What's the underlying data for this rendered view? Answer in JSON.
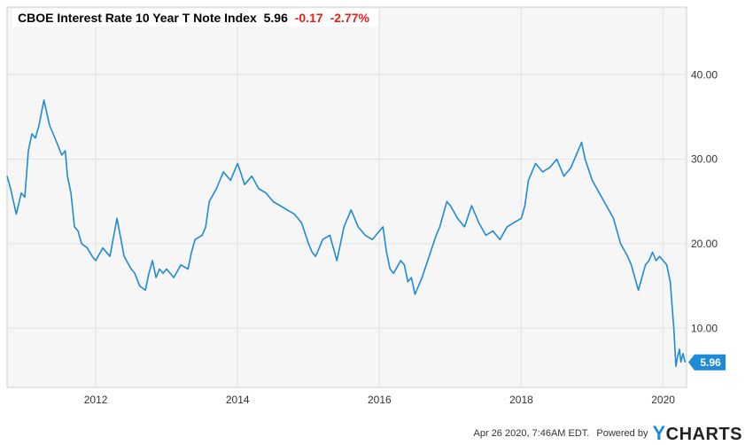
{
  "header": {
    "title": "CBOE Interest Rate 10 Year T Note Index",
    "value": "5.96",
    "change": "-0.17",
    "change_pct": "-2.77%"
  },
  "footer": {
    "timestamp": "Apr 26 2020, 7:46AM EDT.",
    "powered_by": "Powered by",
    "brand_first": "Y",
    "brand_rest": "CHARTS"
  },
  "colors": {
    "line": "#1f8ad6",
    "negative": "#e0201b",
    "plot_bg": "#f6f6f6",
    "grid": "#e2e2e2"
  },
  "chart_data": {
    "type": "line",
    "title": "CBOE Interest Rate 10 Year T Note Index",
    "xlim": [
      2010.75,
      2020.33
    ],
    "ylim": [
      3,
      48
    ],
    "x_ticks": [
      2012,
      2014,
      2016,
      2018,
      2020
    ],
    "x_tick_labels": [
      "2012",
      "2014",
      "2016",
      "2018",
      "2020"
    ],
    "y_ticks": [
      10,
      20,
      30,
      40
    ],
    "y_tick_labels": [
      "10.00",
      "20.00",
      "30.00",
      "40.00"
    ],
    "grid": true,
    "last_value_label": "5.96",
    "last_value": 5.96,
    "series": [
      {
        "x": [
          2010.75,
          2010.8,
          2010.88,
          2010.95,
          2011.0,
          2011.05,
          2011.1,
          2011.15,
          2011.2,
          2011.27,
          2011.35,
          2011.45,
          2011.52,
          2011.57,
          2011.6,
          2011.65,
          2011.7,
          2011.75,
          2011.8,
          2011.88,
          2011.95,
          2012.0,
          2012.1,
          2012.2,
          2012.3,
          2012.4,
          2012.5,
          2012.55,
          2012.62,
          2012.7,
          2012.75,
          2012.8,
          2012.85,
          2012.9,
          2012.95,
          2013.0,
          2013.1,
          2013.2,
          2013.3,
          2013.35,
          2013.4,
          2013.5,
          2013.55,
          2013.6,
          2013.7,
          2013.8,
          2013.9,
          2014.0,
          2014.1,
          2014.2,
          2014.3,
          2014.4,
          2014.5,
          2014.6,
          2014.7,
          2014.8,
          2014.9,
          2015.0,
          2015.05,
          2015.1,
          2015.2,
          2015.3,
          2015.4,
          2015.5,
          2015.6,
          2015.7,
          2015.8,
          2015.9,
          2016.0,
          2016.05,
          2016.1,
          2016.15,
          2016.2,
          2016.3,
          2016.35,
          2016.4,
          2016.45,
          2016.5,
          2016.55,
          2016.6,
          2016.7,
          2016.8,
          2016.85,
          2016.9,
          2016.95,
          2017.0,
          2017.1,
          2017.2,
          2017.3,
          2017.4,
          2017.5,
          2017.6,
          2017.7,
          2017.8,
          2017.9,
          2018.0,
          2018.05,
          2018.1,
          2018.2,
          2018.3,
          2018.4,
          2018.5,
          2018.6,
          2018.7,
          2018.8,
          2018.85,
          2018.9,
          2019.0,
          2019.1,
          2019.2,
          2019.3,
          2019.4,
          2019.5,
          2019.55,
          2019.6,
          2019.65,
          2019.7,
          2019.75,
          2019.8,
          2019.85,
          2019.9,
          2019.95,
          2020.0,
          2020.05,
          2020.1,
          2020.15,
          2020.18,
          2020.2,
          2020.23,
          2020.25,
          2020.28,
          2020.31
        ],
        "values": [
          28.0,
          26.5,
          23.5,
          26.0,
          25.5,
          31.0,
          33.0,
          32.5,
          34.0,
          37.0,
          34.0,
          32.0,
          30.5,
          31.0,
          28.0,
          26.0,
          22.0,
          21.5,
          20.0,
          19.5,
          18.5,
          18.0,
          19.5,
          18.5,
          23.0,
          18.5,
          17.0,
          16.5,
          15.0,
          14.5,
          16.5,
          18.0,
          16.0,
          17.0,
          16.5,
          17.0,
          16.0,
          17.5,
          17.0,
          19.0,
          20.5,
          21.0,
          22.0,
          25.0,
          26.5,
          28.5,
          27.5,
          29.5,
          27.0,
          28.0,
          26.5,
          26.0,
          25.0,
          24.5,
          24.0,
          23.5,
          22.5,
          20.0,
          19.0,
          18.5,
          20.5,
          21.0,
          18.0,
          22.0,
          24.0,
          22.0,
          21.0,
          20.5,
          21.5,
          22.0,
          19.0,
          17.0,
          16.5,
          18.0,
          17.5,
          15.5,
          16.0,
          14.0,
          15.0,
          16.0,
          18.5,
          21.0,
          22.0,
          23.5,
          25.0,
          24.5,
          23.0,
          22.0,
          24.5,
          22.5,
          21.0,
          21.5,
          20.5,
          22.0,
          22.5,
          23.0,
          24.5,
          27.5,
          29.5,
          28.5,
          29.0,
          30.0,
          28.0,
          29.0,
          31.0,
          32.0,
          30.0,
          27.5,
          26.0,
          24.5,
          23.0,
          20.0,
          18.5,
          17.5,
          16.0,
          14.5,
          16.0,
          17.5,
          18.0,
          19.0,
          18.0,
          18.5,
          18.0,
          17.5,
          15.5,
          10.0,
          5.5,
          6.5,
          7.5,
          6.0,
          7.0,
          5.96
        ]
      }
    ]
  }
}
